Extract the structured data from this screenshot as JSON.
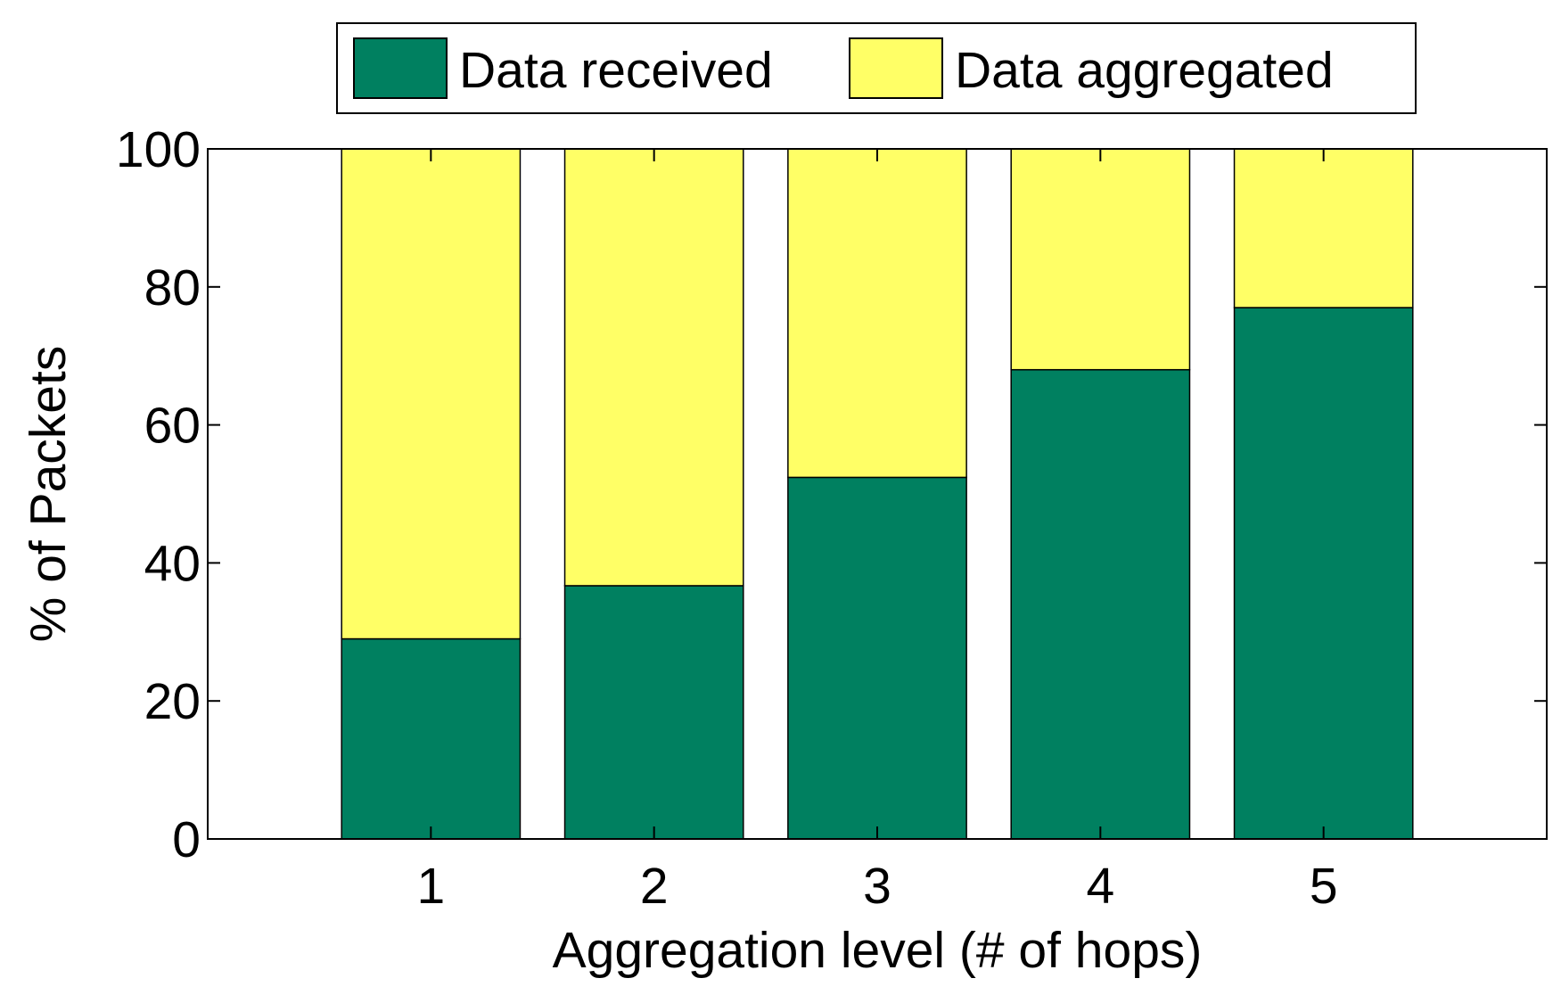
{
  "chart_data": {
    "type": "bar",
    "stacked": true,
    "categories": [
      "1",
      "2",
      "3",
      "4",
      "5"
    ],
    "series": [
      {
        "name": "Data received",
        "values": [
          29,
          36.7,
          52.4,
          68,
          77
        ],
        "color": "#008060"
      },
      {
        "name": "Data aggregated",
        "values": [
          71,
          63.3,
          47.6,
          32,
          23
        ],
        "color": "#FFFF66"
      }
    ],
    "title": "",
    "xlabel": "Aggregation level (# of hops)",
    "ylabel": "% of Packets",
    "ylim": [
      0,
      100
    ],
    "yticks": [
      "0",
      "20",
      "40",
      "60",
      "80",
      "100"
    ],
    "xlim": [
      0,
      6
    ],
    "grid": false,
    "legend": {
      "placement": "top-center, outside plot",
      "orientation": "horizontal"
    }
  }
}
